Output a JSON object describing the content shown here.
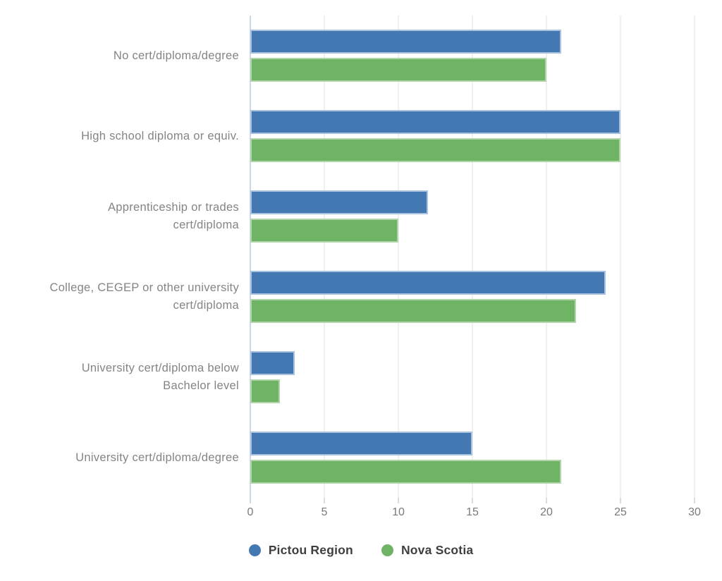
{
  "chart_data": {
    "type": "bar",
    "orientation": "horizontal",
    "title": "",
    "xlabel": "",
    "ylabel": "",
    "categories": [
      "No cert/diploma/degree",
      "High school diploma or equiv.",
      "Apprenticeship or trades\ncert/diploma",
      "College, CEGEP or other university\ncert/diploma",
      "University cert/diploma below\nBachelor level",
      "University cert/diploma/degree"
    ],
    "series": [
      {
        "name": "Pictou Region",
        "color": "#4478b2",
        "values": [
          21,
          25,
          12,
          24,
          3,
          15
        ]
      },
      {
        "name": "Nova Scotia",
        "color": "#6fb464",
        "values": [
          20,
          25,
          10,
          22,
          2,
          21
        ]
      }
    ],
    "xlim": [
      0,
      30
    ],
    "x_ticks": [
      0,
      5,
      10,
      15,
      20,
      25,
      30
    ],
    "grid": true,
    "legend_position": "bottom"
  }
}
